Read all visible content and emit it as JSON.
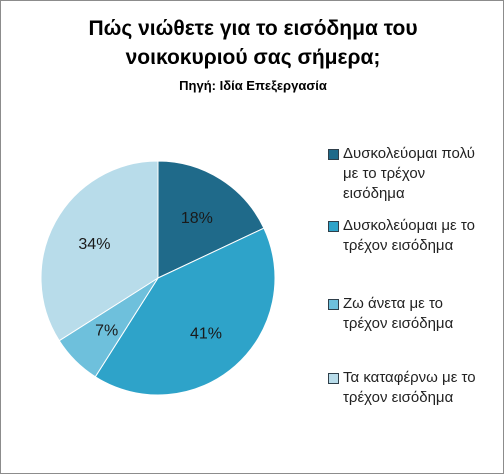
{
  "chart_data": {
    "type": "pie",
    "title_lines": [
      "Πώς νιώθετε για το εισόδημα του",
      "νοικοκυριού σας σήμερα;"
    ],
    "subtitle": "Πηγή: Ιδία Επεξεργασία",
    "slices": [
      {
        "name": "Δυσκολεύομαι πολύ με το τρέχον εισόδημα",
        "legend_lines": [
          "Δυσκολεύομαι πολύ",
          "με το τρέχον",
          "εισόδημα"
        ],
        "value": 18,
        "label": "18%",
        "color": "#1f6a8a"
      },
      {
        "name": "Δυσκολεύομαι με το τρέχον εισόδημα",
        "legend_lines": [
          "Δυσκολεύομαι με το",
          "τρέχον εισόδημα"
        ],
        "value": 41,
        "label": "41%",
        "color": "#2ea3c9"
      },
      {
        "name": "Ζω άνετα με το τρέχον εισόδημα",
        "legend_lines": [
          "Ζω άνετα με το",
          "τρέχον εισόδημα"
        ],
        "value": 7,
        "label": "7%",
        "color": "#6ec0dc"
      },
      {
        "name": "Τα καταφέρνω με το τρέχον εισόδημα",
        "legend_lines": [
          "Τα καταφέρνω με το",
          "τρέχον εισόδημα"
        ],
        "value": 34,
        "label": "34%",
        "color": "#b8dcea"
      }
    ],
    "legend_position": "right"
  }
}
